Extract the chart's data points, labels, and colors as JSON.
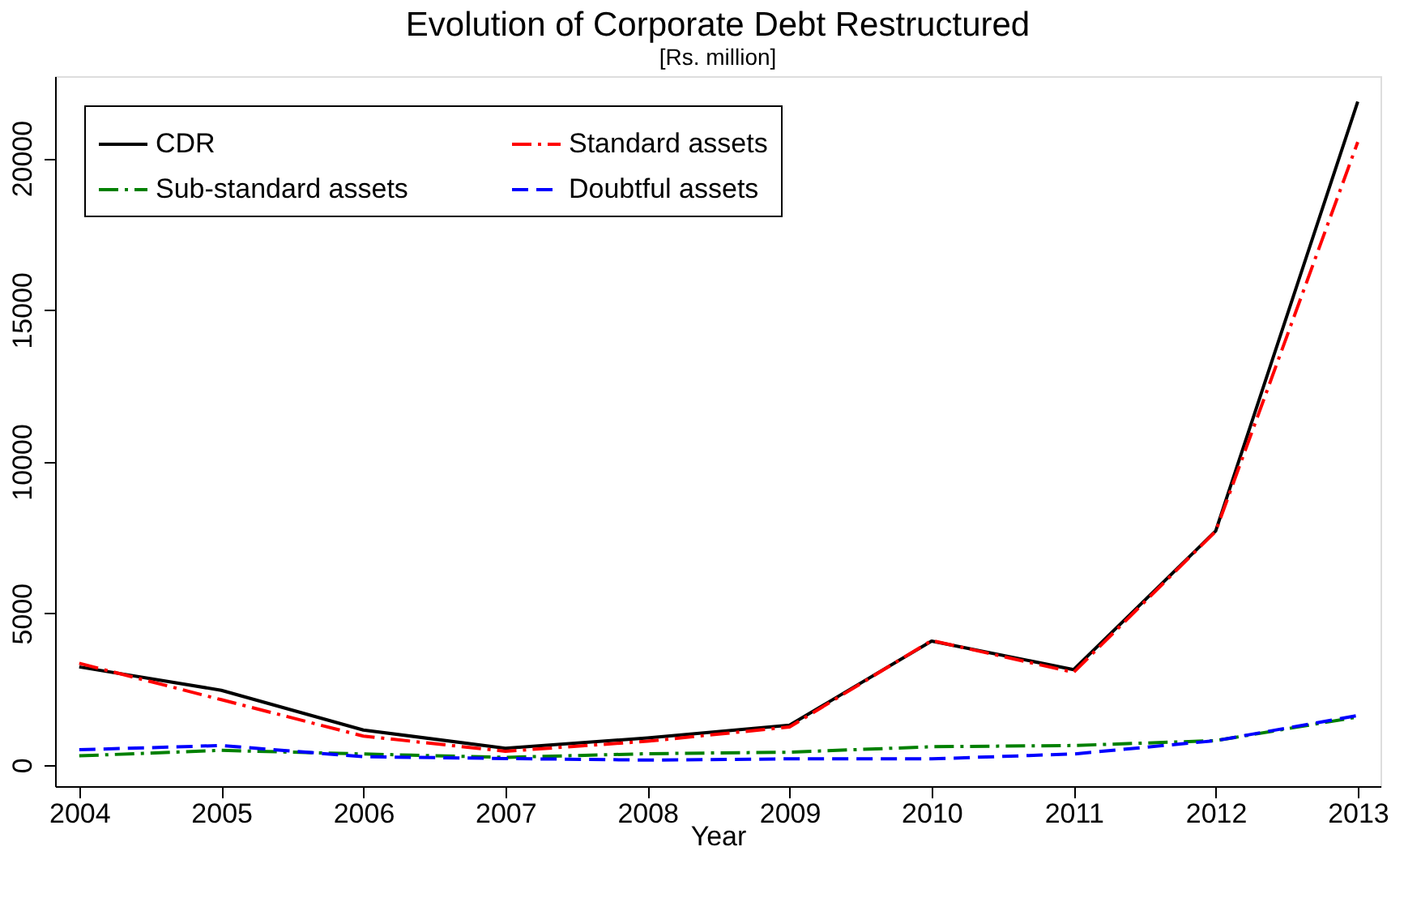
{
  "chart_data": {
    "type": "line",
    "title": "Evolution of Corporate Debt Restructured",
    "subtitle": "[Rs. million]",
    "xlabel": "Year",
    "x": [
      2004,
      2005,
      2006,
      2007,
      2008,
      2009,
      2010,
      2011,
      2012,
      2013
    ],
    "series": [
      {
        "name": "CDR",
        "color": "#000000",
        "line_style": "solid",
        "values": [
          3230,
          2460,
          1150,
          550,
          890,
          1310,
          4080,
          3140,
          7710,
          21860
        ]
      },
      {
        "name": "Standard assets",
        "color": "#ff0000",
        "line_style": "dashdot",
        "values": [
          3350,
          2150,
          950,
          450,
          780,
          1250,
          4100,
          3050,
          7700,
          20530
        ]
      },
      {
        "name": "Sub-standard assets",
        "color": "#008000",
        "line_style": "dashdot",
        "values": [
          300,
          480,
          360,
          250,
          370,
          420,
          600,
          640,
          800,
          1580
        ]
      },
      {
        "name": "Doubtful assets",
        "color": "#0000ff",
        "line_style": "dashed",
        "values": [
          500,
          640,
          270,
          210,
          160,
          200,
          200,
          360,
          800,
          1630
        ]
      }
    ],
    "xlim": [
      2003.83,
      2013.16
    ],
    "xticks": [
      2004,
      2005,
      2006,
      2007,
      2008,
      2009,
      2010,
      2011,
      2012,
      2013
    ],
    "ylim": [
      -700,
      22700
    ],
    "yticks": [
      0,
      5000,
      10000,
      15000,
      20000
    ],
    "grid": false,
    "legend": "top left",
    "marker": "none"
  }
}
